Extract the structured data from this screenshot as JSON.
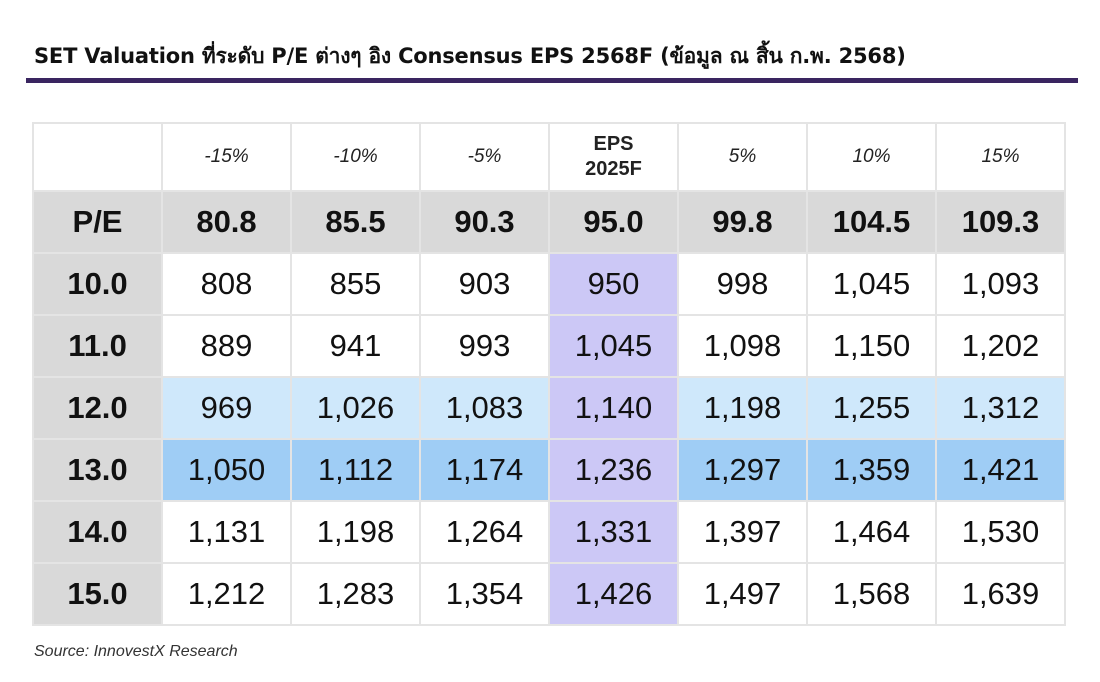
{
  "title": "SET Valuation ที่ระดับ P/E ต่างๆ อิง Consensus EPS 2568F (ข้อมูล ณ สิ้น ก.พ. 2568)",
  "table": {
    "headers": [
      "",
      "-15%",
      "-10%",
      "-5%",
      "EPS 2025F",
      "5%",
      "10%",
      "15%"
    ],
    "eps_header_lines": [
      "EPS",
      "2025F"
    ],
    "pe_row": {
      "label": "P/E",
      "values": [
        "80.8",
        "85.5",
        "90.3",
        "95.0",
        "99.8",
        "104.5",
        "109.3"
      ]
    },
    "rows": [
      {
        "label": "10.0",
        "values": [
          "808",
          "855",
          "903",
          "950",
          "998",
          "1,045",
          "1,093"
        ]
      },
      {
        "label": "11.0",
        "values": [
          "889",
          "941",
          "993",
          "1,045",
          "1,098",
          "1,150",
          "1,202"
        ]
      },
      {
        "label": "12.0",
        "values": [
          "969",
          "1,026",
          "1,083",
          "1,140",
          "1,198",
          "1,255",
          "1,312"
        ]
      },
      {
        "label": "13.0",
        "values": [
          "1,050",
          "1,112",
          "1,174",
          "1,236",
          "1,297",
          "1,359",
          "1,421"
        ]
      },
      {
        "label": "14.0",
        "values": [
          "1,131",
          "1,198",
          "1,264",
          "1,331",
          "1,397",
          "1,464",
          "1,530"
        ]
      },
      {
        "label": "15.0",
        "values": [
          "1,212",
          "1,283",
          "1,354",
          "1,426",
          "1,497",
          "1,568",
          "1,639"
        ]
      }
    ]
  },
  "colors": {
    "title_rule": "#3a2560",
    "header_gray": "#d9d9d9",
    "eps_column": "#ccc8f6",
    "highlight_light_blue": "#cfe8fb",
    "highlight_mid_blue": "#9fcdf5"
  },
  "source": "Source: InnovestX Research"
}
